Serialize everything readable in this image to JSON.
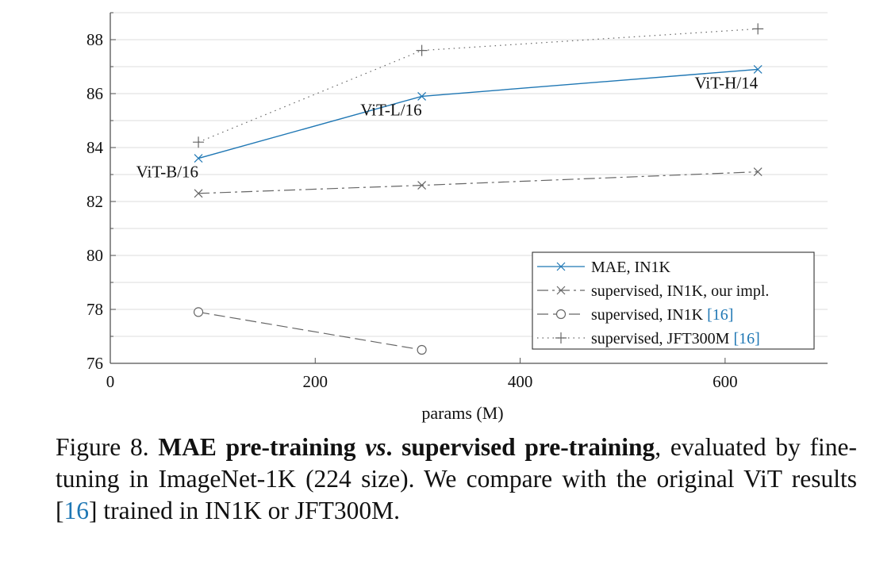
{
  "chart_data": {
    "type": "line",
    "xlabel": "params (M)",
    "ylabel": "",
    "xlim": [
      0,
      700
    ],
    "ylim": [
      76,
      89
    ],
    "xticks": [
      0,
      200,
      400,
      600
    ],
    "yticks": [
      76,
      78,
      80,
      82,
      84,
      86,
      88
    ],
    "grid": "horizontal",
    "legend_position": "bottom-right",
    "series": [
      {
        "name": "MAE, IN1K",
        "color": "#1f77b4",
        "marker": "x",
        "dash": "solid",
        "x": [
          86,
          304,
          632
        ],
        "y": [
          83.6,
          85.9,
          86.9
        ]
      },
      {
        "name": "supervised, IN1K, our impl.",
        "color": "#666666",
        "marker": "x",
        "dash": "dashdot",
        "x": [
          86,
          304,
          632
        ],
        "y": [
          82.3,
          82.6,
          83.1
        ]
      },
      {
        "name": "supervised, IN1K",
        "cite": "[16]",
        "color": "#666666",
        "marker": "o",
        "dash": "dashed",
        "x": [
          86,
          304
        ],
        "y": [
          77.9,
          76.5
        ]
      },
      {
        "name": "supervised, JFT300M",
        "cite": "[16]",
        "color": "#666666",
        "marker": "+",
        "dash": "dotted",
        "x": [
          86,
          304,
          632
        ],
        "y": [
          84.2,
          87.6,
          88.4
        ]
      }
    ],
    "annotations": [
      {
        "text": "ViT-B/16",
        "x": 86,
        "y": 83.6
      },
      {
        "text": "ViT-L/16",
        "x": 304,
        "y": 85.9
      },
      {
        "text": "ViT-H/14",
        "x": 632,
        "y": 86.9
      }
    ]
  },
  "caption": {
    "label": "Figure 8.",
    "bold1": "MAE pre-training ",
    "italic": "vs",
    "bold2": ". supervised pre-training",
    "text1": ", evaluated by fine-tuning in ImageNet-1K (224 size). We compare with the original ViT results [",
    "cite": "16",
    "text2": "] trained in IN1K or JFT300M."
  }
}
